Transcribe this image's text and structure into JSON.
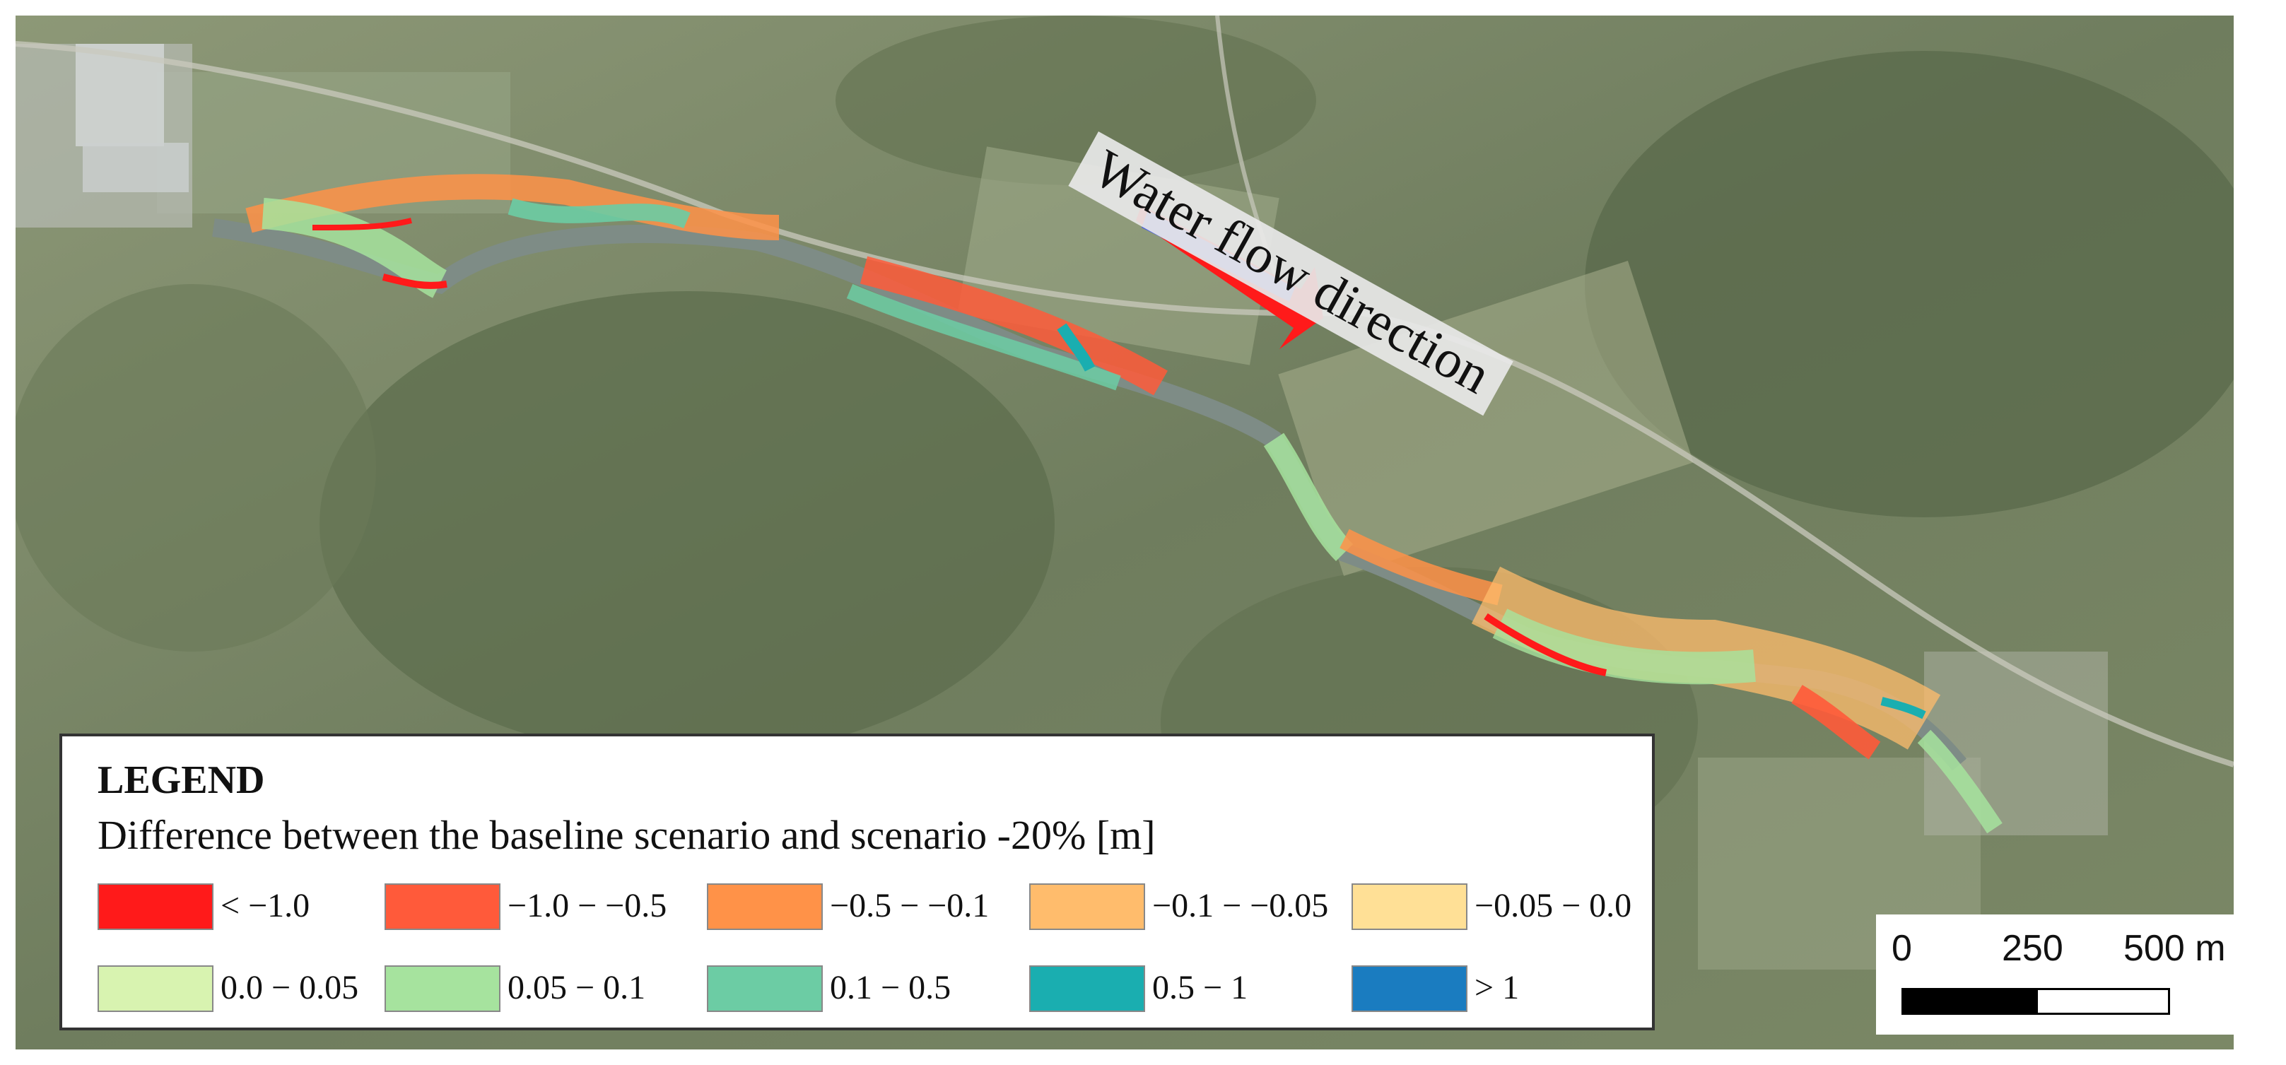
{
  "map": {
    "annotation": "Water flow direction",
    "arrow_colors": {
      "fill": "#4a5ee0",
      "outline": "#ff1a1a"
    }
  },
  "legend": {
    "title": "LEGEND",
    "subtitle": "Difference between the baseline scenario and scenario -20% [m]",
    "items": [
      {
        "label": "< −1.0",
        "color": "#ff1a1a"
      },
      {
        "label": "−1.0  −  −0.5",
        "color": "#ff5a3a"
      },
      {
        "label": "−0.5 −  −0.1",
        "color": "#ff9248"
      },
      {
        "label": "−0.1 − −0.05",
        "color": "#ffbc6c"
      },
      {
        "label": "−0.05 − 0.0",
        "color": "#ffe096"
      },
      {
        "label": "0.0 − 0.05",
        "color": "#d8f3b0"
      },
      {
        "label": "0.05  −  0.1",
        "color": "#a6e39e"
      },
      {
        "label": "0.1 −  0.5",
        "color": "#6ccca4"
      },
      {
        "label": "0.5 − 1",
        "color": "#1aaeb0"
      },
      {
        "label": "> 1",
        "color": "#1a7cc0"
      }
    ]
  },
  "scale": {
    "labels": [
      "0",
      "250",
      "500 m"
    ]
  }
}
